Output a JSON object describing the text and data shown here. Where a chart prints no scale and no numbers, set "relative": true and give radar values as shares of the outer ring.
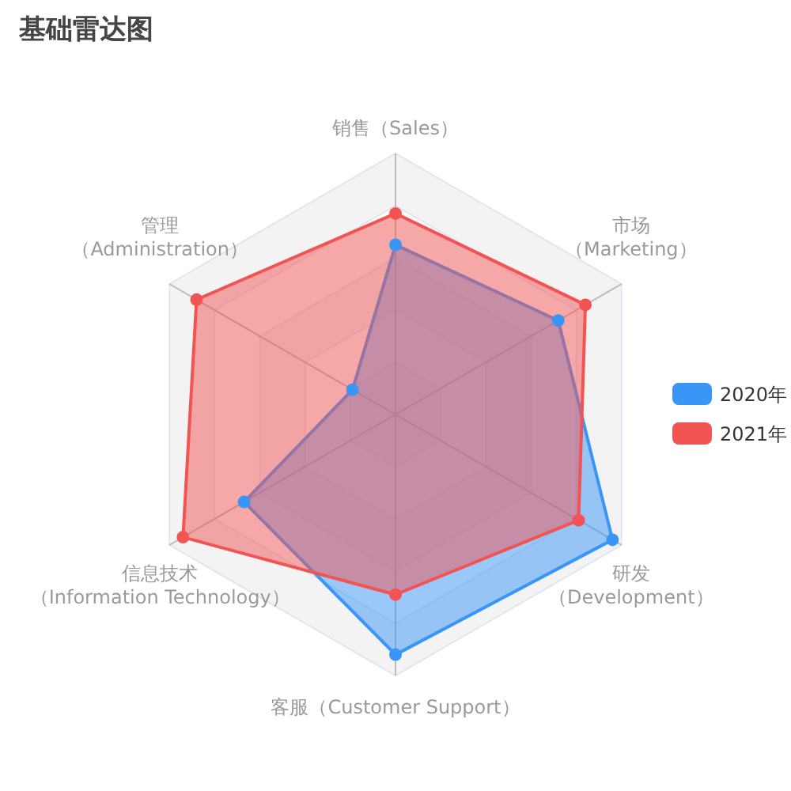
{
  "chart_data": {
    "type": "radar",
    "title": "基础雷达图",
    "categories": [
      "销售（Sales）",
      "市场（Marketing）",
      "研发（Development）",
      "客服（Customer Support）",
      "信息技术（Information Technology）",
      "管理（Administration）"
    ],
    "series": [
      {
        "name": "2020年",
        "color": "#3a96f6",
        "values": [
          0.65,
          0.72,
          0.96,
          0.92,
          0.67,
          0.19
        ]
      },
      {
        "name": "2021年",
        "color": "#f25454",
        "values": [
          0.77,
          0.84,
          0.81,
          0.69,
          0.94,
          0.88
        ]
      }
    ],
    "relative": true,
    "grid": true,
    "legend": "right",
    "marker": "circle"
  }
}
